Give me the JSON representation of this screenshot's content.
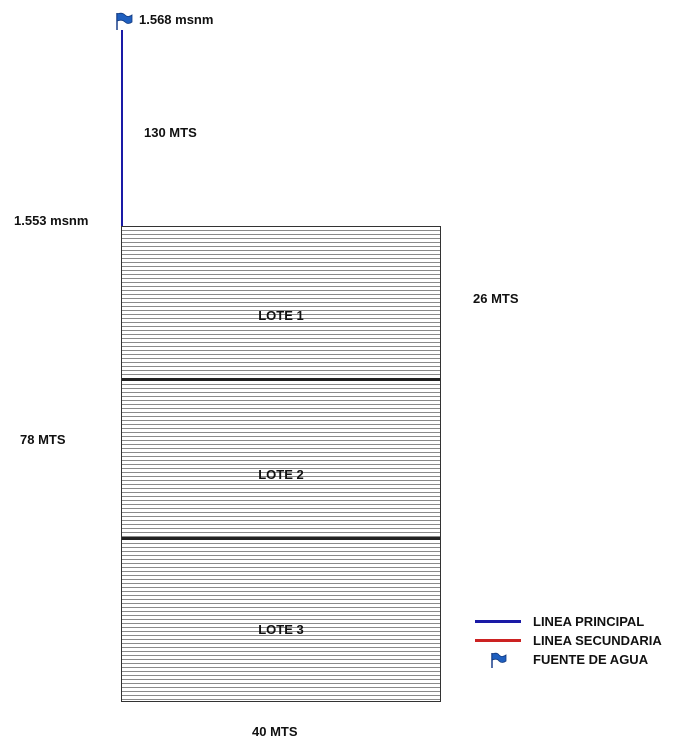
{
  "labels": {
    "top_elevation": "1.568 msnm",
    "mid_elevation": "1.553 msnm",
    "main_line_length": "130 MTS",
    "width": "26 MTS",
    "height": "78 MTS",
    "bottom": "40 MTS"
  },
  "lots": [
    {
      "name": "LOTE 1"
    },
    {
      "name": "LOTE 2"
    },
    {
      "name": "LOTE 3"
    }
  ],
  "legend": [
    {
      "label": "LINEA PRINCIPAL",
      "color": "#1a1aa6",
      "icon": "line"
    },
    {
      "label": "LINEA SECUNDARIA",
      "color": "#cc2222",
      "icon": "line"
    },
    {
      "label": "FUENTE DE AGUA",
      "color": "#1f5fbf",
      "icon": "flag-icon"
    }
  ]
}
